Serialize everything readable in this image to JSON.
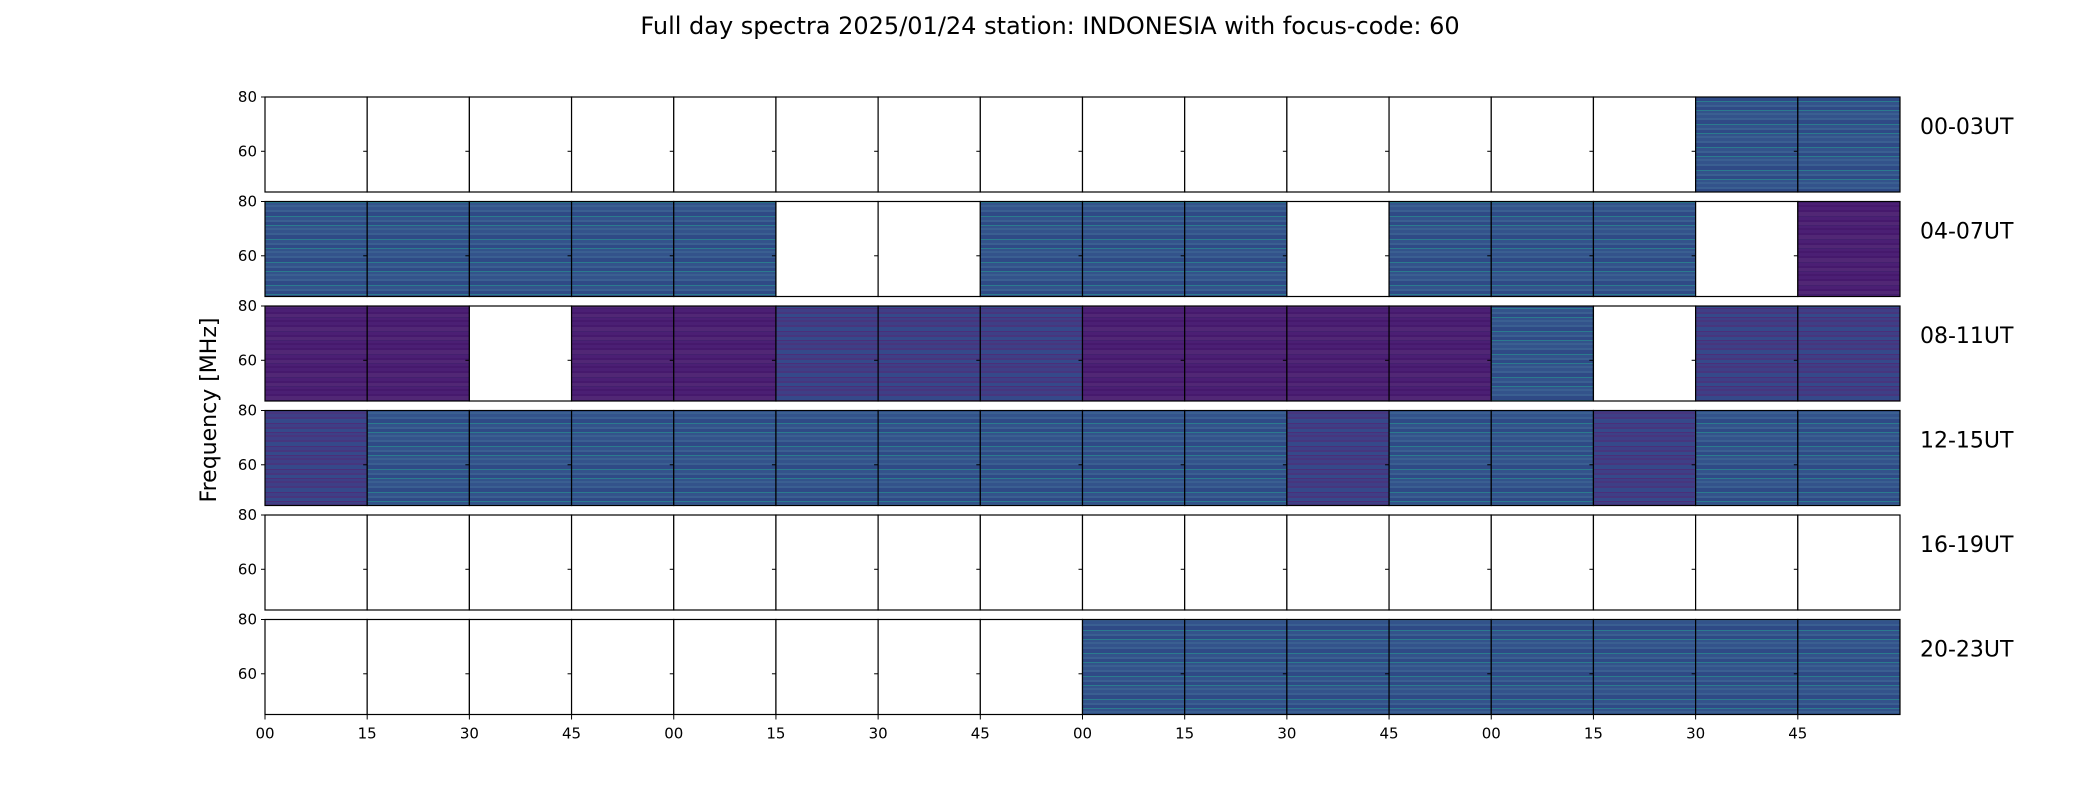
{
  "chart_data": {
    "type": "heatmap",
    "title": "Full day spectra 2025/01/24 station: INDONESIA with focus-code: 60",
    "ylabel": "Frequency [MHz]",
    "ylim": [
      45,
      80
    ],
    "yticks": [
      "60",
      "80"
    ],
    "xticks": [
      "00",
      "15",
      "30",
      "45",
      "00",
      "15",
      "30",
      "45",
      "00",
      "15",
      "30",
      "45",
      "00",
      "15",
      "30",
      "45"
    ],
    "grid": false,
    "rows": [
      {
        "label": "00-03UT",
        "cells": [
          0,
          0,
          0,
          0,
          0,
          0,
          0,
          0,
          0,
          0,
          0,
          0,
          0,
          0,
          1,
          1
        ]
      },
      {
        "label": "04-07UT",
        "cells": [
          1,
          1,
          1,
          1,
          1,
          0,
          0,
          1,
          1,
          1,
          0,
          1,
          1,
          1,
          0,
          3
        ]
      },
      {
        "label": "08-11UT",
        "cells": [
          3,
          3,
          0,
          3,
          3,
          2,
          2,
          2,
          3,
          3,
          3,
          3,
          1,
          0,
          2,
          2
        ]
      },
      {
        "label": "12-15UT",
        "cells": [
          2,
          1,
          1,
          1,
          1,
          1,
          1,
          1,
          1,
          1,
          2,
          1,
          1,
          2,
          1,
          1
        ]
      },
      {
        "label": "16-19UT",
        "cells": [
          0,
          0,
          0,
          0,
          0,
          0,
          0,
          0,
          0,
          0,
          0,
          0,
          0,
          0,
          0,
          0
        ]
      },
      {
        "label": "20-23UT",
        "cells": [
          0,
          0,
          0,
          0,
          0,
          0,
          0,
          0,
          1,
          1,
          1,
          1,
          1,
          1,
          1,
          1
        ]
      }
    ],
    "cell_level_legend": {
      "0": "no data",
      "1": "blue",
      "2": "indigo",
      "3": "dark purple"
    },
    "colors": {
      "1": [
        "#33538b",
        "#3a5f91",
        "#2f4a86",
        "#2b7b8e"
      ],
      "2": [
        "#3e3f86",
        "#47367e",
        "#35498a",
        "#4a2f7a"
      ],
      "3": [
        "#4b1f74",
        "#46196d",
        "#512775",
        "#43206e"
      ]
    }
  }
}
